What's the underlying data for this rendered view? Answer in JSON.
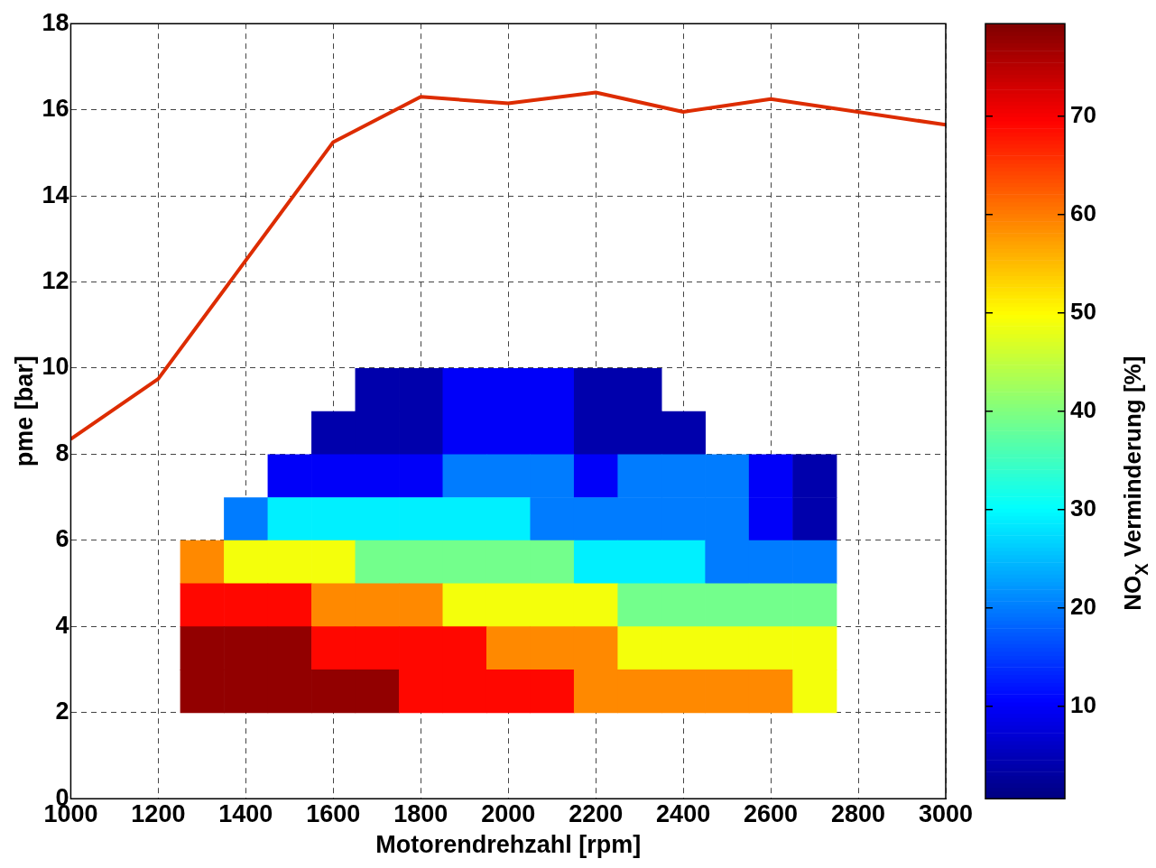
{
  "chart_data": [
    {
      "type": "line",
      "xlabel": "Motorendrehzahl [rpm]",
      "ylabel": "pme [bar]",
      "xlim": [
        1000,
        3000
      ],
      "xticks": [
        1000,
        1200,
        1400,
        1600,
        1800,
        2000,
        2200,
        2400,
        2600,
        2800,
        3000
      ],
      "ylim": [
        0,
        18
      ],
      "yticks": [
        0,
        2,
        4,
        6,
        8,
        10,
        12,
        14,
        16,
        18
      ],
      "grid": true,
      "series": [
        {
          "color": "#dd2c00",
          "x": [
            1000,
            1200,
            1400,
            1600,
            1800,
            2000,
            2200,
            2400,
            2600,
            3000
          ],
          "values": [
            8.35,
            9.75,
            12.5,
            15.25,
            16.3,
            16.15,
            16.4,
            15.95,
            16.25,
            15.65
          ]
        }
      ]
    },
    {
      "type": "heatmap",
      "clabel": "NO$_{X}$ Verminderung [%]",
      "clim": [
        0.6,
        79.4
      ],
      "cticks": [
        10,
        20,
        30,
        40,
        50,
        60,
        70
      ],
      "categories": [
        null,
        null,
        null,
        null,
        null,
        null,
        null,
        null,
        null,
        null,
        null,
        null,
        null,
        null,
        null
      ],
      "y_categories": [
        null,
        null,
        null,
        null,
        null,
        null,
        null,
        null
      ],
      "cells": [
        [
          null,
          null,
          null,
          null,
          4,
          4,
          10,
          10,
          10,
          4,
          4,
          null,
          null,
          null,
          null
        ],
        [
          null,
          null,
          null,
          4,
          4,
          4,
          10,
          10,
          10,
          4,
          4,
          4,
          null,
          null,
          null
        ],
        [
          null,
          null,
          10,
          10,
          10,
          10,
          20,
          20,
          20,
          10,
          20,
          20,
          20,
          10,
          4
        ],
        [
          null,
          20,
          29,
          29,
          29,
          29,
          29,
          29,
          20,
          20,
          20,
          20,
          20,
          10,
          4
        ],
        [
          59,
          49,
          49,
          49,
          39,
          39,
          39,
          39,
          39,
          29,
          29,
          29,
          20,
          20,
          20
        ],
        [
          69,
          69,
          69,
          59,
          59,
          59,
          49,
          49,
          49,
          49,
          39,
          39,
          39,
          39,
          39
        ],
        [
          78,
          78,
          78,
          69,
          69,
          69,
          69,
          59,
          59,
          59,
          49,
          49,
          49,
          49,
          49
        ],
        [
          78,
          78,
          78,
          78,
          78,
          69,
          69,
          69,
          69,
          59,
          59,
          59,
          59,
          59,
          49
        ]
      ]
    }
  ]
}
